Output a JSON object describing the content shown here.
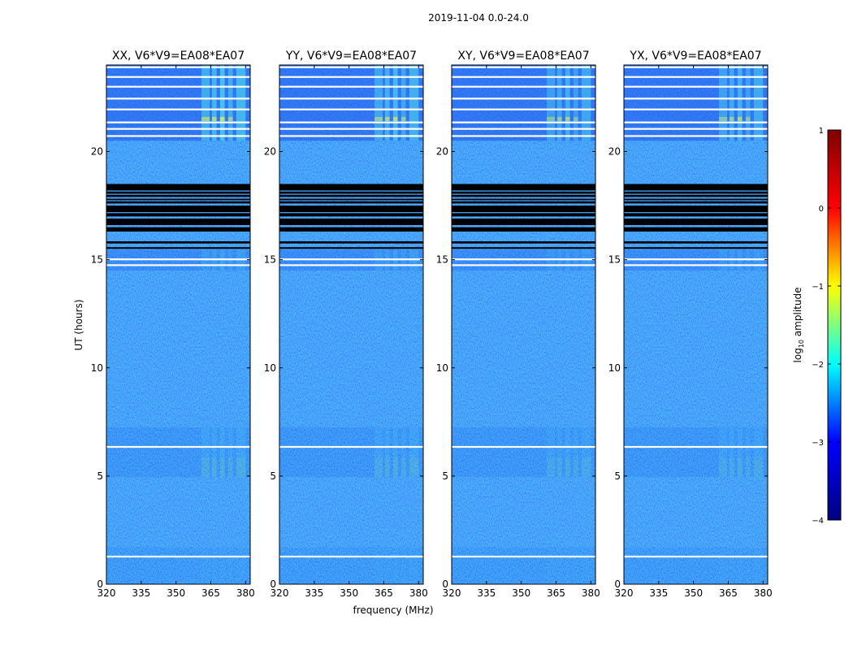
{
  "figure": {
    "suptitle": "2019-11-04 0.0-24.0",
    "xlabel": "frequency (MHz)",
    "ylabel": "UT (hours)"
  },
  "colorbar": {
    "label": "log",
    "label_sub": "10",
    "label_rest": " amplitude",
    "ticks": [
      {
        "value": 1,
        "label": "1"
      },
      {
        "value": 0,
        "label": "0"
      },
      {
        "value": -1,
        "label": "−1"
      },
      {
        "value": -2,
        "label": "−2"
      },
      {
        "value": -3,
        "label": "−3"
      },
      {
        "value": -4,
        "label": "−4"
      }
    ],
    "range": [
      -4,
      1
    ],
    "colormap": "jet",
    "colors": [
      "#00007f",
      "#0000ff",
      "#00ffff",
      "#ffff00",
      "#ff0000",
      "#7f0000"
    ]
  },
  "chart_data": {
    "type": "heatmap",
    "title": "2019-11-04 0.0-24.0",
    "xlabel": "frequency (MHz)",
    "ylabel": "UT (hours)",
    "xlim": [
      320,
      382
    ],
    "ylim": [
      0,
      24
    ],
    "x_ticks": [
      320,
      335,
      350,
      365,
      380
    ],
    "x_tick_labels": [
      "320",
      "335",
      "350",
      "365",
      "380"
    ],
    "y_ticks": [
      0,
      5,
      10,
      15,
      20
    ],
    "y_tick_labels": [
      "0",
      "5",
      "10",
      "15",
      "20"
    ],
    "value_range": [
      -4,
      1
    ],
    "panels": [
      {
        "title": "XX, V6*V9=EA08*EA07",
        "rfi_intensity": 1.0
      },
      {
        "title": "YY, V6*V9=EA08*EA07",
        "rfi_intensity": 0.9
      },
      {
        "title": "XY, V6*V9=EA08*EA07",
        "rfi_intensity": 0.75
      },
      {
        "title": "YX, V6*V9=EA08*EA07",
        "rfi_intensity": 0.8
      }
    ],
    "data_blocks_hours": [
      [
        0.05,
        1.7
      ],
      [
        4.95,
        7.25
      ],
      [
        14.5,
        15.45
      ],
      [
        20.5,
        24.0
      ]
    ],
    "flagged_bands_hours": [
      [
        15.5,
        15.58
      ],
      [
        15.75,
        15.85
      ],
      [
        16.3,
        16.5
      ],
      [
        16.6,
        16.9
      ],
      [
        17.0,
        17.15
      ],
      [
        17.2,
        17.5
      ],
      [
        17.6,
        17.7
      ],
      [
        17.75,
        17.82
      ],
      [
        17.9,
        18.0
      ],
      [
        18.05,
        18.15
      ],
      [
        18.2,
        18.5
      ]
    ],
    "gap_lines_hours": [
      1.28,
      6.35,
      14.75,
      15.02,
      20.72,
      21.05,
      21.35,
      21.95,
      22.45,
      23.0,
      23.45,
      23.9
    ],
    "rfi_channels_mhz": [
      [
        361,
        364.5
      ],
      [
        365.5,
        367.5
      ],
      [
        369,
        371
      ],
      [
        372.5,
        374.5
      ],
      [
        376,
        380
      ]
    ]
  }
}
